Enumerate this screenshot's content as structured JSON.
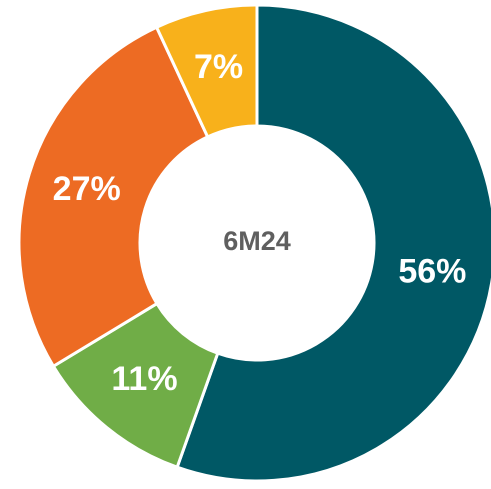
{
  "chart_data": {
    "type": "donut",
    "values": [
      56,
      11,
      27,
      7
    ],
    "value_labels": [
      "56%",
      "11%",
      "27%",
      "7%"
    ],
    "colors": [
      "#005865",
      "#70ad47",
      "#ed6b23",
      "#f8b11b"
    ],
    "center_label": "6M24"
  }
}
